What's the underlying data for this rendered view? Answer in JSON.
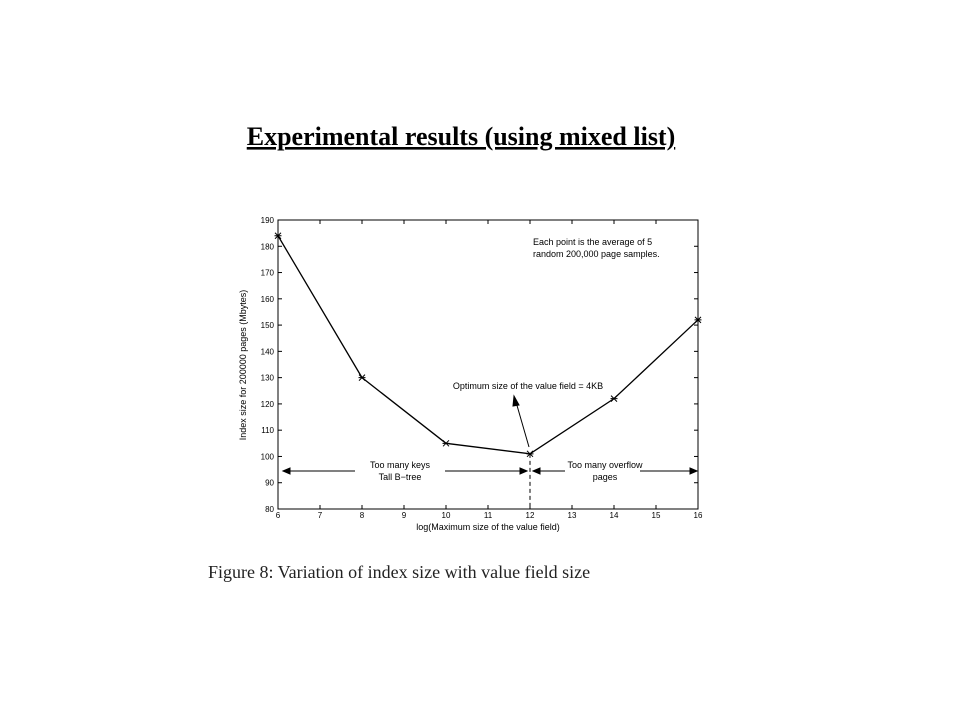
{
  "slide": {
    "title": "Experimental results (using mixed list)"
  },
  "chart_data": {
    "type": "line",
    "x": [
      6,
      8,
      10,
      12,
      14,
      16
    ],
    "values": [
      184,
      130,
      105,
      101,
      122,
      152
    ],
    "color": "#000000",
    "xlim": [
      6,
      16
    ],
    "xticks": [
      6,
      7,
      8,
      9,
      10,
      11,
      12,
      13,
      14,
      15,
      16
    ],
    "ylim": [
      80,
      190
    ],
    "yticks": [
      80,
      90,
      100,
      110,
      120,
      130,
      140,
      150,
      160,
      170,
      180,
      190
    ],
    "xlabel": "log(Maximum size of the value field)",
    "ylabel": "Index size for 200000 pages (Mbytes)",
    "annotations": {
      "note": [
        "Each point is the average of 5",
        "random 200,000 page samples."
      ],
      "optimum": "Optimum size of the value field = 4KB",
      "left_region": [
        "Too many keys",
        "Tall B−tree"
      ],
      "right_region": [
        "Too many overflow",
        "pages"
      ]
    },
    "caption": "Figure 8:  Variation of index size with value field size"
  }
}
